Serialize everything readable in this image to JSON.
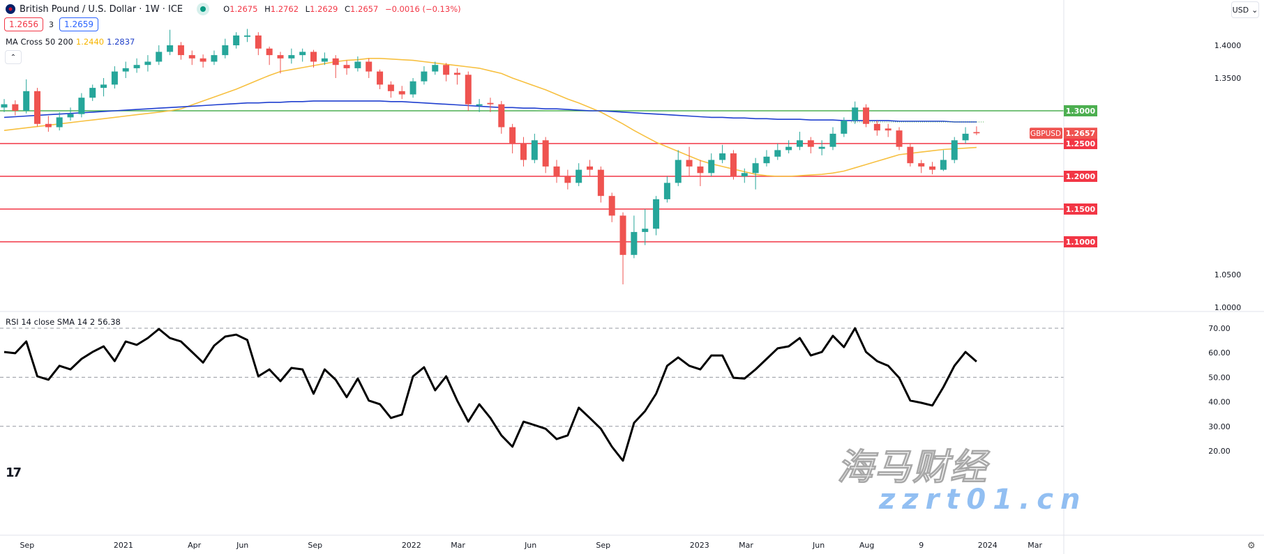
{
  "header": {
    "symbol_title": "British Pound / U.S. Dollar · 1W · ICE",
    "market_status": "open",
    "open_label": "O",
    "open": "1.2675",
    "high_label": "H",
    "high": "1.2762",
    "low_label": "L",
    "low": "1.2629",
    "close_label": "C",
    "close": "1.2657",
    "change": "−0.0016 (−0.13%)",
    "bid": "1.2656",
    "spread": "3",
    "ask": "1.2659",
    "collapse_icon": "chevron-up"
  },
  "ma_legend": {
    "label": "MA Cross 50 200",
    "ma50": "1.2440",
    "ma200": "1.2837"
  },
  "rsi_legend": {
    "label": "RSI 14 close SMA 14 2",
    "value": "56.38"
  },
  "currency_button": {
    "label": "USD",
    "icon": "chevron-down"
  },
  "settings_icon": "gear",
  "logo": "TV",
  "watermark": {
    "cn": "海马财经",
    "en": "zzrt01.cn"
  },
  "colors": {
    "up": "#26a69a",
    "down": "#ef5350",
    "ma50": "#f7c040",
    "ma200": "#1f3fcf",
    "level_green": "#4caf50",
    "level_red": "#f23645",
    "rsi": "#000000",
    "price_tag": "#ef5350"
  },
  "chart_data": [
    {
      "type": "candlestick",
      "symbol": "GBPUSD",
      "ylim": [
        1.0,
        1.43
      ],
      "price_ticks": [
        "1.4000",
        "1.3500",
        "1.0500",
        "1.0000"
      ],
      "levels": [
        {
          "value": 1.3,
          "label": "1.3000",
          "color": "green"
        },
        {
          "value": 1.25,
          "label": "1.2500",
          "color": "red"
        },
        {
          "value": 1.2,
          "label": "1.2000",
          "color": "red"
        },
        {
          "value": 1.15,
          "label": "1.1500",
          "color": "red"
        },
        {
          "value": 1.1,
          "label": "1.1000",
          "color": "red"
        }
      ],
      "last_price": {
        "symbol": "GBPUSD",
        "value": 1.2657,
        "label": "1.2657"
      },
      "x_ticks": [
        {
          "label": "Sep",
          "date": "2020-09-01"
        },
        {
          "label": "2021",
          "date": "2021-01-01"
        },
        {
          "label": "Apr",
          "date": "2021-04-01"
        },
        {
          "label": "Jun",
          "date": "2021-06-01"
        },
        {
          "label": "Sep",
          "date": "2021-09-01"
        },
        {
          "label": "2022",
          "date": "2022-01-01"
        },
        {
          "label": "Mar",
          "date": "2022-03-01"
        },
        {
          "label": "Jun",
          "date": "2022-06-01"
        },
        {
          "label": "Sep",
          "date": "2022-09-01"
        },
        {
          "label": "2023",
          "date": "2023-01-01"
        },
        {
          "label": "Mar",
          "date": "2023-03-01"
        },
        {
          "label": "Jun",
          "date": "2023-06-01"
        },
        {
          "label": "Aug",
          "date": "2023-08-01"
        },
        {
          "label": "9",
          "date": "2023-10-09"
        },
        {
          "label": "2024",
          "date": "2024-01-01"
        },
        {
          "label": "Mar",
          "date": "2024-03-01"
        }
      ],
      "candles": [
        [
          "2020-08-03",
          1.305,
          1.318,
          1.298,
          1.31
        ],
        [
          "2020-08-17",
          1.31,
          1.316,
          1.293,
          1.3
        ],
        [
          "2020-08-31",
          1.3,
          1.348,
          1.296,
          1.33
        ],
        [
          "2020-09-14",
          1.33,
          1.335,
          1.276,
          1.28
        ],
        [
          "2020-09-28",
          1.28,
          1.292,
          1.268,
          1.275
        ],
        [
          "2020-10-12",
          1.275,
          1.298,
          1.27,
          1.29
        ],
        [
          "2020-10-26",
          1.29,
          1.305,
          1.285,
          1.295
        ],
        [
          "2020-11-09",
          1.295,
          1.327,
          1.29,
          1.32
        ],
        [
          "2020-11-23",
          1.32,
          1.34,
          1.315,
          1.335
        ],
        [
          "2020-12-07",
          1.335,
          1.35,
          1.322,
          1.34
        ],
        [
          "2020-12-21",
          1.34,
          1.368,
          1.334,
          1.36
        ],
        [
          "2021-01-04",
          1.36,
          1.375,
          1.35,
          1.365
        ],
        [
          "2021-01-18",
          1.365,
          1.38,
          1.358,
          1.37
        ],
        [
          "2021-02-01",
          1.37,
          1.385,
          1.36,
          1.375
        ],
        [
          "2021-02-15",
          1.375,
          1.4,
          1.37,
          1.39
        ],
        [
          "2021-03-01",
          1.39,
          1.4237,
          1.385,
          1.4
        ],
        [
          "2021-03-15",
          1.4,
          1.405,
          1.378,
          1.385
        ],
        [
          "2021-03-29",
          1.385,
          1.392,
          1.37,
          1.38
        ],
        [
          "2021-04-12",
          1.38,
          1.386,
          1.366,
          1.375
        ],
        [
          "2021-04-26",
          1.375,
          1.392,
          1.37,
          1.385
        ],
        [
          "2021-05-10",
          1.385,
          1.41,
          1.38,
          1.4
        ],
        [
          "2021-05-24",
          1.4,
          1.42,
          1.395,
          1.415
        ],
        [
          "2021-06-07",
          1.413,
          1.425,
          1.405,
          1.415
        ],
        [
          "2021-06-21",
          1.415,
          1.42,
          1.385,
          1.395
        ],
        [
          "2021-07-05",
          1.395,
          1.398,
          1.37,
          1.385
        ],
        [
          "2021-07-19",
          1.385,
          1.39,
          1.357,
          1.38
        ],
        [
          "2021-08-02",
          1.38,
          1.395,
          1.372,
          1.385
        ],
        [
          "2021-08-16",
          1.385,
          1.395,
          1.375,
          1.39
        ],
        [
          "2021-08-30",
          1.39,
          1.393,
          1.366,
          1.375
        ],
        [
          "2021-09-13",
          1.375,
          1.389,
          1.37,
          1.38
        ],
        [
          "2021-09-27",
          1.38,
          1.385,
          1.35,
          1.37
        ],
        [
          "2021-10-11",
          1.37,
          1.377,
          1.355,
          1.365
        ],
        [
          "2021-10-25",
          1.365,
          1.383,
          1.36,
          1.375
        ],
        [
          "2021-11-08",
          1.375,
          1.38,
          1.35,
          1.36
        ],
        [
          "2021-11-22",
          1.36,
          1.363,
          1.333,
          1.34
        ],
        [
          "2021-12-06",
          1.34,
          1.345,
          1.32,
          1.33
        ],
        [
          "2021-12-20",
          1.33,
          1.338,
          1.318,
          1.325
        ],
        [
          "2022-01-03",
          1.325,
          1.35,
          1.32,
          1.345
        ],
        [
          "2022-01-17",
          1.345,
          1.368,
          1.34,
          1.36
        ],
        [
          "2022-01-31",
          1.36,
          1.375,
          1.355,
          1.37
        ],
        [
          "2022-02-14",
          1.37,
          1.373,
          1.345,
          1.355
        ],
        [
          "2022-02-28",
          1.358,
          1.365,
          1.34,
          1.355
        ],
        [
          "2022-03-14",
          1.355,
          1.36,
          1.3,
          1.31
        ],
        [
          "2022-03-28",
          1.308,
          1.318,
          1.298,
          1.31
        ],
        [
          "2022-04-11",
          1.312,
          1.32,
          1.298,
          1.31
        ],
        [
          "2022-04-25",
          1.31,
          1.315,
          1.265,
          1.275
        ],
        [
          "2022-05-09",
          1.275,
          1.28,
          1.235,
          1.25
        ],
        [
          "2022-05-23",
          1.25,
          1.26,
          1.215,
          1.225
        ],
        [
          "2022-06-06",
          1.225,
          1.265,
          1.22,
          1.255
        ],
        [
          "2022-06-20",
          1.255,
          1.26,
          1.205,
          1.215
        ],
        [
          "2022-07-04",
          1.215,
          1.225,
          1.19,
          1.2
        ],
        [
          "2022-07-18",
          1.2,
          1.21,
          1.18,
          1.19
        ],
        [
          "2022-08-01",
          1.19,
          1.22,
          1.185,
          1.21
        ],
        [
          "2022-08-15",
          1.215,
          1.225,
          1.2,
          1.21
        ],
        [
          "2022-08-29",
          1.21,
          1.215,
          1.16,
          1.17
        ],
        [
          "2022-09-12",
          1.17,
          1.175,
          1.13,
          1.14
        ],
        [
          "2022-09-26",
          1.14,
          1.145,
          1.035,
          1.08
        ],
        [
          "2022-10-10",
          1.08,
          1.14,
          1.075,
          1.115
        ],
        [
          "2022-10-24",
          1.115,
          1.15,
          1.095,
          1.12
        ],
        [
          "2022-11-07",
          1.12,
          1.17,
          1.11,
          1.165
        ],
        [
          "2022-11-21",
          1.165,
          1.2,
          1.16,
          1.19
        ],
        [
          "2022-12-05",
          1.19,
          1.24,
          1.185,
          1.225
        ],
        [
          "2022-12-19",
          1.225,
          1.245,
          1.2,
          1.215
        ],
        [
          "2023-01-02",
          1.215,
          1.225,
          1.185,
          1.205
        ],
        [
          "2023-01-16",
          1.205,
          1.235,
          1.2,
          1.225
        ],
        [
          "2023-01-30",
          1.225,
          1.248,
          1.22,
          1.235
        ],
        [
          "2023-02-13",
          1.235,
          1.24,
          1.195,
          1.2
        ],
        [
          "2023-02-27",
          1.2,
          1.212,
          1.19,
          1.205
        ],
        [
          "2023-03-13",
          1.205,
          1.228,
          1.18,
          1.22
        ],
        [
          "2023-03-27",
          1.22,
          1.24,
          1.215,
          1.23
        ],
        [
          "2023-04-10",
          1.23,
          1.25,
          1.225,
          1.24
        ],
        [
          "2023-04-24",
          1.24,
          1.255,
          1.235,
          1.245
        ],
        [
          "2023-05-08",
          1.245,
          1.268,
          1.24,
          1.255
        ],
        [
          "2023-05-22",
          1.255,
          1.26,
          1.235,
          1.245
        ],
        [
          "2023-06-05",
          1.242,
          1.255,
          1.232,
          1.245
        ],
        [
          "2023-06-19",
          1.245,
          1.275,
          1.24,
          1.265
        ],
        [
          "2023-07-03",
          1.265,
          1.29,
          1.26,
          1.285
        ],
        [
          "2023-07-17",
          1.285,
          1.3142,
          1.28,
          1.305
        ],
        [
          "2023-07-31",
          1.305,
          1.31,
          1.275,
          1.28
        ],
        [
          "2023-08-14",
          1.28,
          1.285,
          1.262,
          1.27
        ],
        [
          "2023-08-28",
          1.273,
          1.28,
          1.26,
          1.27
        ],
        [
          "2023-09-11",
          1.27,
          1.275,
          1.24,
          1.245
        ],
        [
          "2023-09-25",
          1.245,
          1.25,
          1.215,
          1.22
        ],
        [
          "2023-10-09",
          1.22,
          1.225,
          1.205,
          1.215
        ],
        [
          "2023-10-23",
          1.215,
          1.222,
          1.203,
          1.21
        ],
        [
          "2023-11-06",
          1.21,
          1.24,
          1.208,
          1.225
        ],
        [
          "2023-11-20",
          1.225,
          1.26,
          1.22,
          1.255
        ],
        [
          "2023-12-04",
          1.255,
          1.275,
          1.25,
          1.265
        ],
        [
          "2023-12-18",
          1.2675,
          1.2762,
          1.2629,
          1.2657
        ]
      ],
      "ma50": [
        1.27,
        1.272,
        1.274,
        1.276,
        1.278,
        1.28,
        1.282,
        1.284,
        1.286,
        1.288,
        1.29,
        1.292,
        1.294,
        1.296,
        1.298,
        1.3,
        1.303,
        1.309,
        1.315,
        1.321,
        1.327,
        1.333,
        1.34,
        1.347,
        1.354,
        1.36,
        1.363,
        1.366,
        1.369,
        1.372,
        1.375,
        1.377,
        1.378,
        1.38,
        1.38,
        1.379,
        1.378,
        1.377,
        1.375,
        1.373,
        1.371,
        1.369,
        1.367,
        1.365,
        1.361,
        1.357,
        1.35,
        1.344,
        1.338,
        1.332,
        1.325,
        1.318,
        1.312,
        1.305,
        1.298,
        1.289,
        1.28,
        1.27,
        1.261,
        1.252,
        1.245,
        1.238,
        1.231,
        1.224,
        1.219,
        1.215,
        1.211,
        1.207,
        1.203,
        1.201,
        1.2,
        1.2,
        1.201,
        1.202,
        1.203,
        1.205,
        1.208,
        1.213,
        1.218,
        1.223,
        1.228,
        1.233,
        1.235,
        1.237,
        1.239,
        1.241,
        1.242,
        1.243,
        1.244
      ],
      "ma200": [
        1.29,
        1.291,
        1.292,
        1.293,
        1.294,
        1.295,
        1.296,
        1.297,
        1.298,
        1.299,
        1.3,
        1.301,
        1.302,
        1.303,
        1.304,
        1.305,
        1.306,
        1.307,
        1.308,
        1.309,
        1.31,
        1.311,
        1.312,
        1.312,
        1.313,
        1.313,
        1.314,
        1.314,
        1.315,
        1.315,
        1.315,
        1.315,
        1.315,
        1.315,
        1.315,
        1.314,
        1.314,
        1.313,
        1.312,
        1.311,
        1.31,
        1.309,
        1.308,
        1.307,
        1.306,
        1.305,
        1.305,
        1.304,
        1.304,
        1.303,
        1.303,
        1.302,
        1.301,
        1.3,
        1.3,
        1.299,
        1.298,
        1.297,
        1.296,
        1.295,
        1.294,
        1.293,
        1.292,
        1.291,
        1.29,
        1.29,
        1.289,
        1.289,
        1.288,
        1.288,
        1.287,
        1.287,
        1.287,
        1.286,
        1.286,
        1.286,
        1.285,
        1.285,
        1.285,
        1.285,
        1.285,
        1.284,
        1.284,
        1.284,
        1.284,
        1.284,
        1.283,
        1.283,
        1.283
      ]
    },
    {
      "type": "line",
      "name": "RSI",
      "ylim": [
        12,
        77
      ],
      "y_ticks": [
        "70.00",
        "60.00",
        "50.00",
        "40.00",
        "30.00",
        "20.00"
      ],
      "bands": [
        70,
        50,
        30
      ],
      "values": [
        60.3,
        59.8,
        64.6,
        50.4,
        49,
        54.7,
        53.2,
        57.5,
        60.3,
        62.6,
        56.6,
        64.6,
        63.2,
        66,
        69.7,
        66,
        64.6,
        60.3,
        56,
        62.9,
        66.6,
        67.4,
        65.2,
        50.4,
        53.2,
        48.4,
        53.8,
        53.2,
        43.3,
        53.2,
        49,
        41.9,
        49.5,
        40.5,
        39,
        33.4,
        34.8,
        50.4,
        54.1,
        44.7,
        50.4,
        40.5,
        31.9,
        39,
        33.4,
        26.3,
        21.7,
        31.9,
        30.5,
        29,
        24.8,
        26.3,
        37.6,
        33.4,
        29,
        21.7,
        16,
        31.4,
        36.2,
        43.3,
        54.7,
        58.1,
        54.7,
        53.2,
        58.9,
        58.9,
        49.8,
        49.5,
        53.2,
        57.5,
        61.8,
        62.6,
        66,
        58.9,
        60.3,
        66.9,
        62.3,
        70,
        60.3,
        56.6,
        54.7,
        49.8,
        40.5,
        39.6,
        38.5,
        46,
        54.7,
        60.3,
        56.38
      ]
    }
  ]
}
